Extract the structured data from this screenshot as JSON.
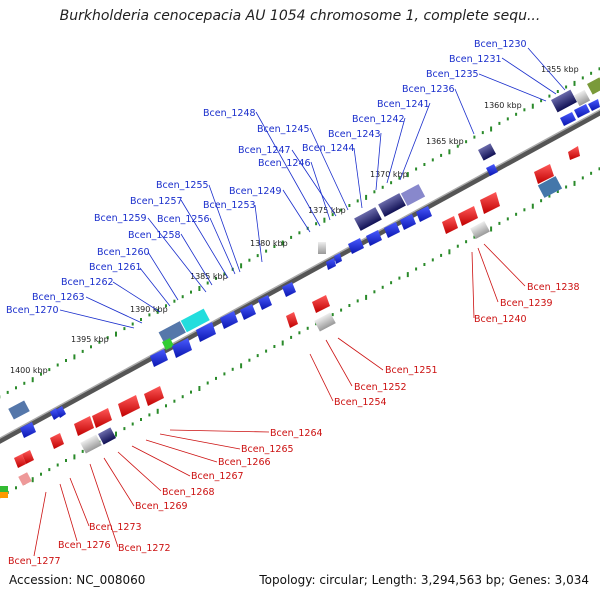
{
  "title": "Burkholderia cenocepacia AU 1054 chromosome 1, complete sequ...",
  "accession": "Accession: NC_008060",
  "topology": "Topology: circular; Length: 3,294,563 bp; Genes: 3,034",
  "ticks": [
    "1355 kbp",
    "1360 kbp",
    "1365 kbp",
    "1370 kbp",
    "1375 kbp",
    "1380 kbp",
    "1385 kbp",
    "1390 kbp",
    "1395 kbp",
    "1400 kbp"
  ],
  "forward_genes": [
    "Bcen_1230",
    "Bcen_1231",
    "Bcen_1235",
    "Bcen_1236",
    "Bcen_1241",
    "Bcen_1242",
    "Bcen_1243",
    "Bcen_1244",
    "Bcen_1245",
    "Bcen_1246",
    "Bcen_1247",
    "Bcen_1248",
    "Bcen_1249",
    "Bcen_1253",
    "Bcen_1255",
    "Bcen_1256",
    "Bcen_1257",
    "Bcen_1258",
    "Bcen_1259",
    "Bcen_1260",
    "Bcen_1261",
    "Bcen_1262",
    "Bcen_1263",
    "Bcen_1270"
  ],
  "reverse_genes": [
    "Bcen_1238",
    "Bcen_1239",
    "Bcen_1240",
    "Bcen_1251",
    "Bcen_1252",
    "Bcen_1254",
    "Bcen_1264",
    "Bcen_1265",
    "Bcen_1266",
    "Bcen_1267",
    "Bcen_1268",
    "Bcen_1269",
    "Bcen_1272",
    "Bcen_1273",
    "Bcen_1276",
    "Bcen_1277"
  ],
  "colors": {
    "forward": "#1a2ecc",
    "reverse": "#cc1111",
    "backbone": "#666666",
    "tick_dots": "#2a8a2a"
  }
}
